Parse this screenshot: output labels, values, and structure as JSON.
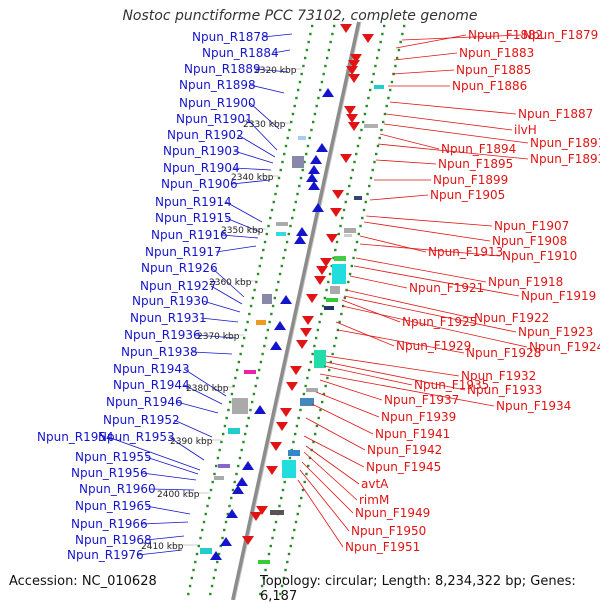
{
  "title": "Nostoc punctiforme PCC 73102, complete genome",
  "accession": "Accession: NC_010628",
  "summary": "Topology: circular; Length: 8,234,322 bp; Genes: 6,187",
  "colors": {
    "reverse": "#1414cc",
    "forward": "#e01414",
    "backbone": "#8c8c8c",
    "scale": "#2a8a2a"
  },
  "kbp_ticks": [
    "2320 kbp",
    "2330 kbp",
    "2340 kbp",
    "2350 kbp",
    "2360 kbp",
    "2370 kbp",
    "2380 kbp",
    "2390 kbp",
    "2400 kbp",
    "2410 kbp"
  ],
  "reverse_genes": [
    "Npun_R1878",
    "Npun_R1884",
    "Npun_R1889",
    "Npun_R1898",
    "Npun_R1900",
    "Npun_R1901",
    "Npun_R1902",
    "Npun_R1903",
    "Npun_R1904",
    "Npun_R1906",
    "Npun_R1914",
    "Npun_R1915",
    "Npun_R1916",
    "Npun_R1917",
    "Npun_R1926",
    "Npun_R1927",
    "Npun_R1930",
    "Npun_R1931",
    "Npun_R1936",
    "Npun_R1938",
    "Npun_R1943",
    "Npun_R1944",
    "Npun_R1946",
    "Npun_R1952",
    "Npun_R1954",
    "Npun_R1953",
    "Npun_R1955",
    "Npun_R1956",
    "Npun_R1960",
    "Npun_R1965",
    "Npun_R1966",
    "Npun_R1968",
    "Npun_R1976"
  ],
  "forward_genes": [
    "Npun_F1879",
    "Npun_F1882",
    "Npun_F1883",
    "Npun_F1885",
    "Npun_F1886",
    "Npun_F1887",
    "ilvH",
    "Npun_F1891",
    "Npun_F1894",
    "Npun_F1893",
    "Npun_F1895",
    "Npun_F1899",
    "Npun_F1905",
    "Npun_F1907",
    "Npun_F1908",
    "Npun_F1913",
    "Npun_F1910",
    "Npun_F1918",
    "Npun_F1921",
    "Npun_F1919",
    "Npun_F1922",
    "Npun_F1925",
    "Npun_F1923",
    "Npun_F1924",
    "Npun_F1929",
    "Npun_F1928",
    "Npun_F1932",
    "Npun_F1935",
    "Npun_F1933",
    "Npun_F1937",
    "Npun_F1934",
    "Npun_F1939",
    "Npun_F1941",
    "Npun_F1942",
    "Npun_F1945",
    "avtA",
    "rimM",
    "Npun_F1949",
    "Npun_F1950",
    "Npun_F1951"
  ]
}
